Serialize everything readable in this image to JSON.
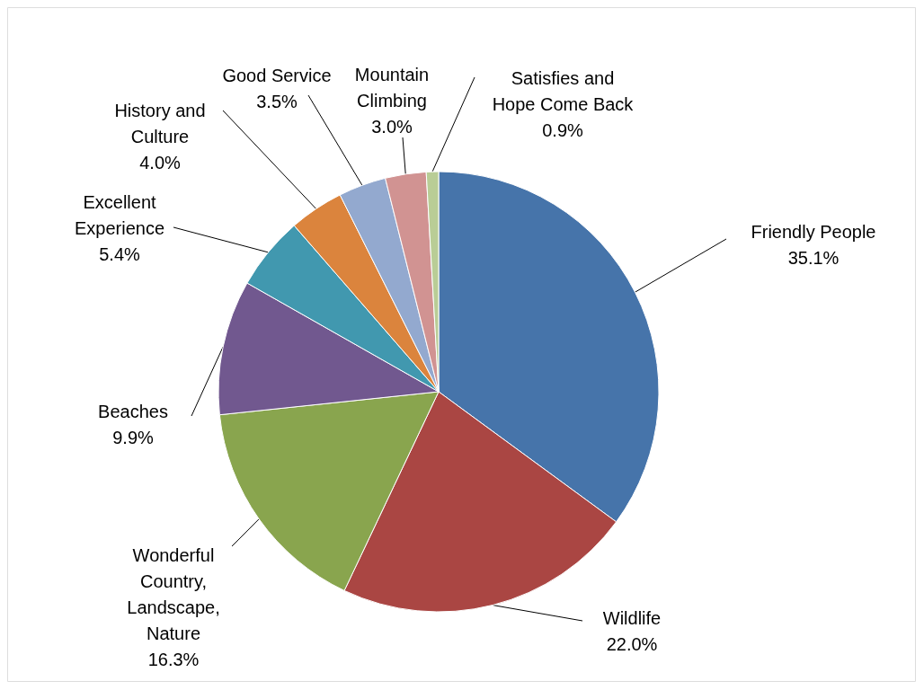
{
  "chart_data": {
    "type": "pie",
    "categories": [
      "Friendly People",
      "Wildlife",
      "Wonderful Country, Landscape, Nature",
      "Beaches",
      "Excellent Experience",
      "History and Culture",
      "Good Service",
      "Mountain Climbing",
      "Satisfies and Hope Come Back"
    ],
    "values": [
      35.1,
      22.0,
      16.3,
      9.9,
      5.4,
      4.0,
      3.5,
      3.0,
      0.9
    ],
    "value_labels": [
      "35.1%",
      "22.0%",
      "16.3%",
      "9.9%",
      "5.4%",
      "4.0%",
      "3.5%",
      "3.0%",
      "0.9%"
    ],
    "colors": [
      "#4674aa",
      "#aa4643",
      "#89a54e",
      "#71588f",
      "#4198af",
      "#db843d",
      "#93a9cf",
      "#d19392",
      "#b9cd96"
    ]
  }
}
